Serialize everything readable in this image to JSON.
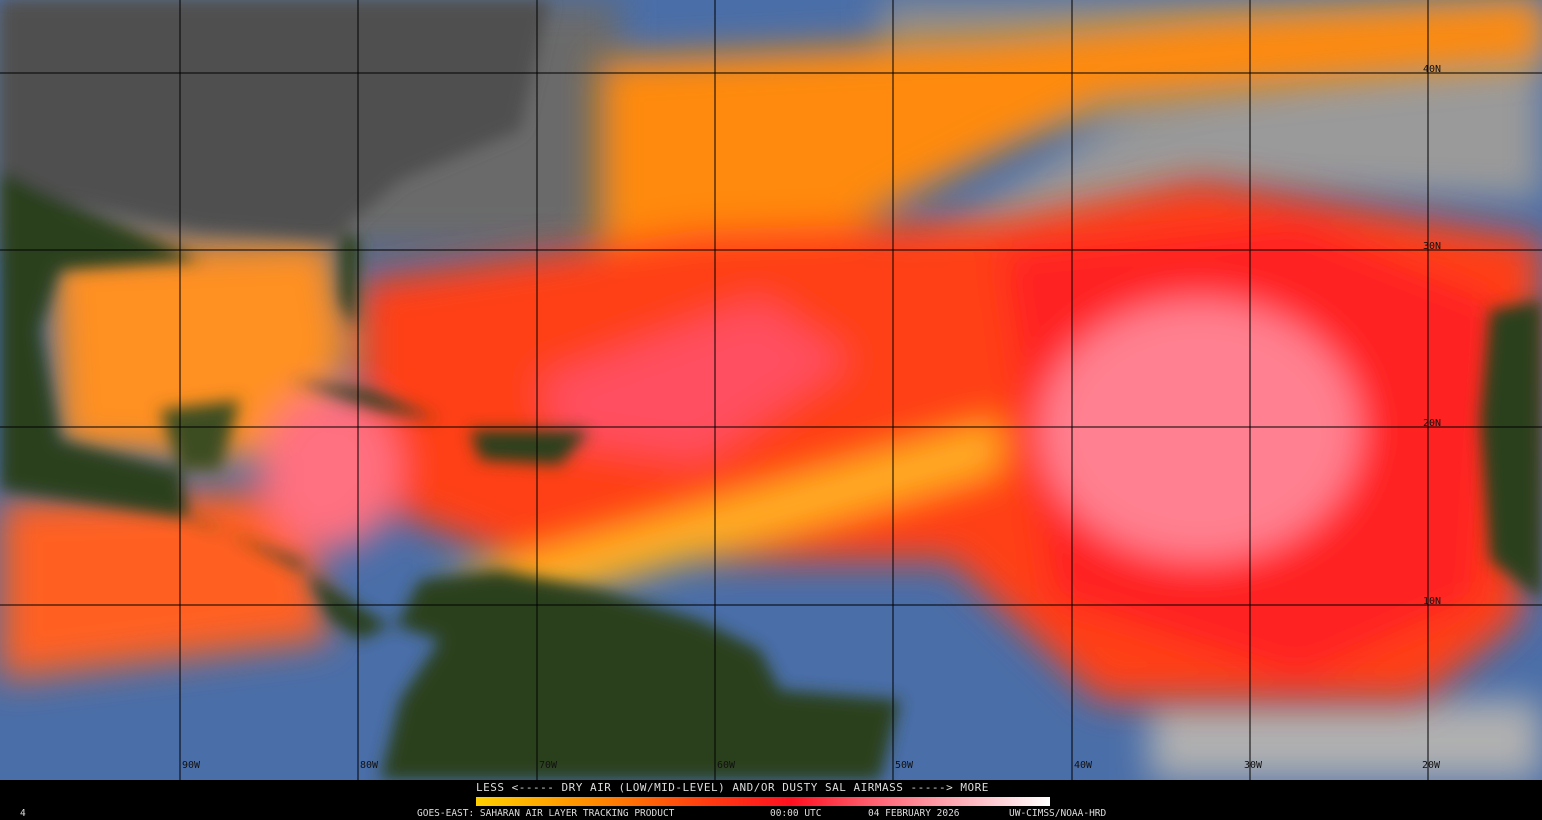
{
  "legend": {
    "title": "LESS <----- DRY AIR (LOW/MID-LEVEL) AND/OR DUSTY SAL AIRMASS -----> MORE",
    "colors": [
      "#ffd000",
      "#ff8c00",
      "#ff1020",
      "#ff7080",
      "#ffffff"
    ]
  },
  "footer": {
    "corner": "4",
    "product": "GOES-EAST: SAHARAN AIR LAYER TRACKING PRODUCT",
    "time": "00:00 UTC",
    "date": "04 FEBRUARY 2026",
    "credit": "UW-CIMSS/NOAA-HRD"
  },
  "grid": {
    "latitudes": [
      "40N",
      "30N",
      "20N",
      "10N"
    ],
    "longitudes": [
      "90W",
      "80W",
      "70W",
      "60W",
      "50W",
      "40W",
      "30W",
      "20W"
    ]
  },
  "colors": {
    "land": "#2c3f1c",
    "ocean": "#4a6ea8",
    "cloud": "#8a8a8a",
    "dry_air": "#ff3020"
  }
}
